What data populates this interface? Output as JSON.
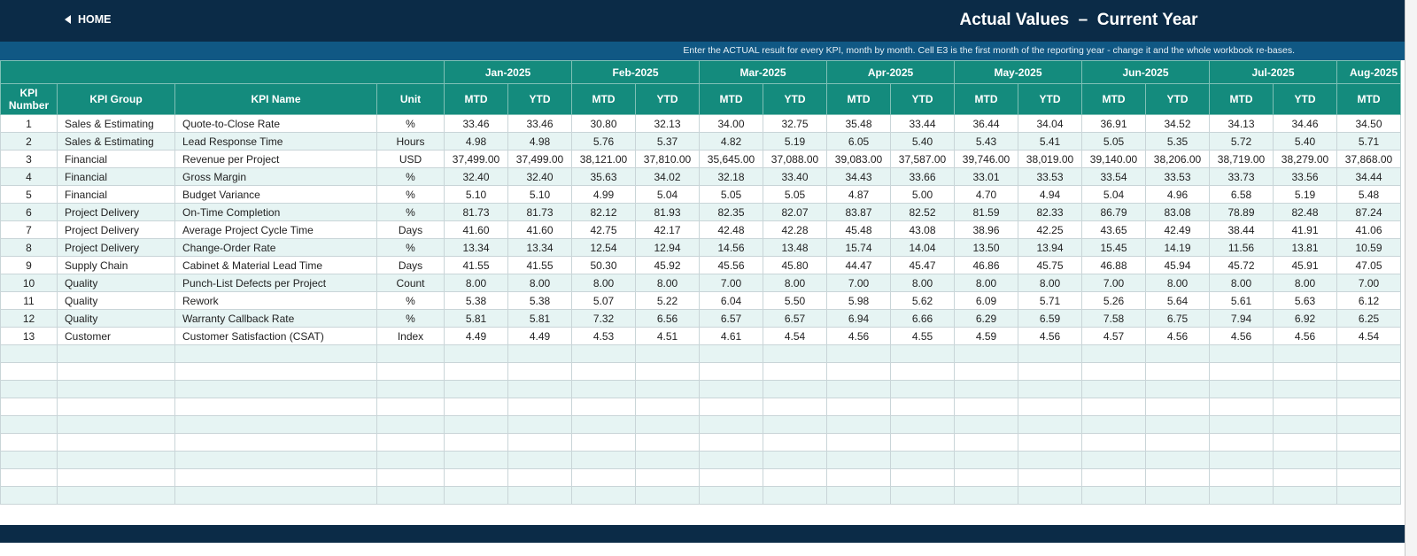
{
  "header": {
    "home": "HOME",
    "title": "Actual Values  –  Current Year"
  },
  "instruction": "Enter the ACTUAL result for every KPI, month by month. Cell E3 is the first month of the reporting year - change it and the whole workbook re-bases.",
  "table": {
    "months": [
      "Jan-2025",
      "Feb-2025",
      "Mar-2025",
      "Apr-2025",
      "May-2025",
      "Jun-2025",
      "Jul-2025",
      "Aug-2025"
    ],
    "columns": [
      "KPI Number",
      "KPI Group",
      "KPI Name",
      "Unit",
      "MTD",
      "YTD",
      "MTD",
      "YTD",
      "MTD",
      "YTD",
      "MTD",
      "YTD",
      "MTD",
      "YTD",
      "MTD",
      "YTD",
      "MTD",
      "YTD",
      "MTD"
    ],
    "rows": [
      [
        "1",
        "Sales & Estimating",
        "Quote-to-Close Rate",
        "%",
        "33.46",
        "33.46",
        "30.80",
        "32.13",
        "34.00",
        "32.75",
        "35.48",
        "33.44",
        "36.44",
        "34.04",
        "36.91",
        "34.52",
        "34.13",
        "34.46",
        "34.50"
      ],
      [
        "2",
        "Sales & Estimating",
        "Lead Response Time",
        "Hours",
        "4.98",
        "4.98",
        "5.76",
        "5.37",
        "4.82",
        "5.19",
        "6.05",
        "5.40",
        "5.43",
        "5.41",
        "5.05",
        "5.35",
        "5.72",
        "5.40",
        "5.71"
      ],
      [
        "3",
        "Financial",
        "Revenue per Project",
        "USD",
        "37,499.00",
        "37,499.00",
        "38,121.00",
        "37,810.00",
        "35,645.00",
        "37,088.00",
        "39,083.00",
        "37,587.00",
        "39,746.00",
        "38,019.00",
        "39,140.00",
        "38,206.00",
        "38,719.00",
        "38,279.00",
        "37,868.00"
      ],
      [
        "4",
        "Financial",
        "Gross Margin",
        "%",
        "32.40",
        "32.40",
        "35.63",
        "34.02",
        "32.18",
        "33.40",
        "34.43",
        "33.66",
        "33.01",
        "33.53",
        "33.54",
        "33.53",
        "33.73",
        "33.56",
        "34.44"
      ],
      [
        "5",
        "Financial",
        "Budget Variance",
        "%",
        "5.10",
        "5.10",
        "4.99",
        "5.04",
        "5.05",
        "5.05",
        "4.87",
        "5.00",
        "4.70",
        "4.94",
        "5.04",
        "4.96",
        "6.58",
        "5.19",
        "5.48"
      ],
      [
        "6",
        "Project Delivery",
        "On-Time Completion",
        "%",
        "81.73",
        "81.73",
        "82.12",
        "81.93",
        "82.35",
        "82.07",
        "83.87",
        "82.52",
        "81.59",
        "82.33",
        "86.79",
        "83.08",
        "78.89",
        "82.48",
        "87.24"
      ],
      [
        "7",
        "Project Delivery",
        "Average Project Cycle Time",
        "Days",
        "41.60",
        "41.60",
        "42.75",
        "42.17",
        "42.48",
        "42.28",
        "45.48",
        "43.08",
        "38.96",
        "42.25",
        "43.65",
        "42.49",
        "38.44",
        "41.91",
        "41.06"
      ],
      [
        "8",
        "Project Delivery",
        "Change-Order Rate",
        "%",
        "13.34",
        "13.34",
        "12.54",
        "12.94",
        "14.56",
        "13.48",
        "15.74",
        "14.04",
        "13.50",
        "13.94",
        "15.45",
        "14.19",
        "11.56",
        "13.81",
        "10.59"
      ],
      [
        "9",
        "Supply Chain",
        "Cabinet & Material Lead Time",
        "Days",
        "41.55",
        "41.55",
        "50.30",
        "45.92",
        "45.56",
        "45.80",
        "44.47",
        "45.47",
        "46.86",
        "45.75",
        "46.88",
        "45.94",
        "45.72",
        "45.91",
        "47.05"
      ],
      [
        "10",
        "Quality",
        "Punch-List Defects per Project",
        "Count",
        "8.00",
        "8.00",
        "8.00",
        "8.00",
        "7.00",
        "8.00",
        "7.00",
        "8.00",
        "8.00",
        "8.00",
        "7.00",
        "8.00",
        "8.00",
        "8.00",
        "7.00"
      ],
      [
        "11",
        "Quality",
        "Rework",
        "%",
        "5.38",
        "5.38",
        "5.07",
        "5.22",
        "6.04",
        "5.50",
        "5.98",
        "5.62",
        "6.09",
        "5.71",
        "5.26",
        "5.64",
        "5.61",
        "5.63",
        "6.12"
      ],
      [
        "12",
        "Quality",
        "Warranty Callback Rate",
        "%",
        "5.81",
        "5.81",
        "7.32",
        "6.56",
        "6.57",
        "6.57",
        "6.94",
        "6.66",
        "6.29",
        "6.59",
        "7.58",
        "6.75",
        "7.94",
        "6.92",
        "6.25"
      ],
      [
        "13",
        "Customer",
        "Customer Satisfaction (CSAT)",
        "Index",
        "4.49",
        "4.49",
        "4.53",
        "4.51",
        "4.61",
        "4.54",
        "4.56",
        "4.55",
        "4.59",
        "4.56",
        "4.57",
        "4.56",
        "4.56",
        "4.56",
        "4.54"
      ]
    ]
  }
}
